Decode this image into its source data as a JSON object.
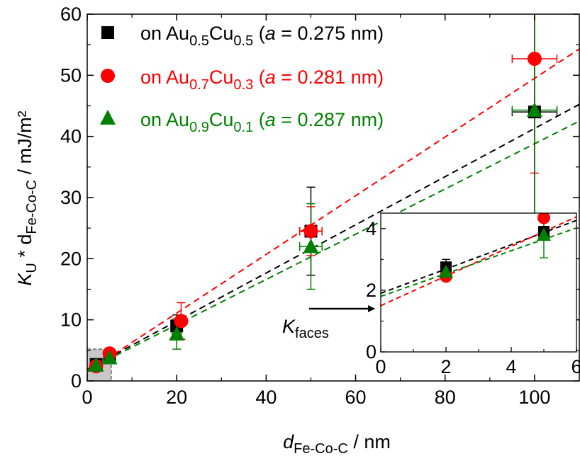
{
  "chart_data": {
    "type": "scatter",
    "xlabel": {
      "main": "d",
      "sub": "Fe-Co-C",
      "unit": " / nm"
    },
    "ylabel": {
      "main1": "K",
      "sub1": "U",
      "mid": " * d",
      "sub2": "Fe-Co-C",
      "unit": " / mJ/m²"
    },
    "xlim": [
      0,
      110
    ],
    "ylim": [
      0,
      60
    ],
    "xticks": [
      0,
      20,
      40,
      60,
      80,
      100
    ],
    "yticks": [
      0,
      10,
      20,
      30,
      40,
      50,
      60
    ],
    "grid": false,
    "legend_position": "top-left",
    "series": [
      {
        "name": "on Au0.5Cu0.5 (a = 0.275 nm)",
        "legend": {
          "pre": "on Au",
          "s1": "0.5",
          "mid": "Cu",
          "s2": "0.5",
          "open": " (",
          "avar": "a",
          "eq": " = 0.275 nm)"
        },
        "color": "#000000",
        "marker": "square",
        "x": [
          2,
          5,
          20,
          50,
          100
        ],
        "y": [
          2.7,
          3.9,
          9.0,
          24.5,
          44.0
        ],
        "xerr": [
          0.5,
          0.5,
          1.0,
          2.5,
          5.0
        ],
        "yerr": [
          0.3,
          0.5,
          1.8,
          7.2,
          25.0
        ],
        "fit": {
          "slope": 0.394,
          "intercept": 1.9
        }
      },
      {
        "name": "on Au0.7Cu0.3 (a = 0.281 nm)",
        "legend": {
          "pre": "on Au",
          "s1": "0.7",
          "mid": "Cu",
          "s2": "0.3",
          "open": " (",
          "avar": "a",
          "eq": " = 0.281 nm)"
        },
        "color": "#ff0000",
        "marker": "circle",
        "x": [
          2,
          5,
          21,
          50,
          100
        ],
        "y": [
          2.4,
          4.5,
          9.8,
          24.5,
          52.7
        ],
        "xerr": [
          0.5,
          0.5,
          1.0,
          2.5,
          5.0
        ],
        "yerr": [
          0.2,
          0.4,
          3.0,
          4.0,
          18.7
        ],
        "fit": {
          "slope": 0.48,
          "intercept": 1.5
        }
      },
      {
        "name": "on Au0.9Cu0.1 (a = 0.287 nm)",
        "legend": {
          "pre": "on Au",
          "s1": "0.9",
          "mid": "Cu",
          "s2": "0.1",
          "open": " (",
          "avar": "a",
          "eq": " = 0.287 nm)"
        },
        "color": "#008000",
        "marker": "triangle",
        "x": [
          2,
          5,
          20,
          50,
          100
        ],
        "y": [
          2.6,
          3.8,
          7.7,
          22.0,
          44.3
        ],
        "xerr": [
          0.5,
          0.5,
          1.0,
          2.5,
          5.0
        ],
        "yerr": [
          0.3,
          0.4,
          2.5,
          7.0,
          25.0
        ],
        "fit": {
          "slope": 0.37,
          "intercept": 1.8
        }
      }
    ],
    "inset": {
      "xlim": [
        0,
        6
      ],
      "ylim": [
        0,
        4.5
      ],
      "xticks": [
        0,
        2,
        4,
        6
      ],
      "yticks": [
        0,
        2,
        4
      ],
      "series": [
        {
          "x": [
            2,
            5
          ],
          "y": [
            2.75,
            3.9
          ],
          "yerr": [
            0.25,
            0.15
          ]
        },
        {
          "x": [
            2,
            5
          ],
          "y": [
            2.45,
            4.35
          ],
          "yerr": [
            0.1,
            0.3
          ]
        },
        {
          "x": [
            2,
            5
          ],
          "y": [
            2.6,
            3.8
          ],
          "yerr": [
            0.2,
            0.75
          ]
        }
      ]
    },
    "annotation": {
      "main": "K",
      "sub": "faces"
    }
  }
}
